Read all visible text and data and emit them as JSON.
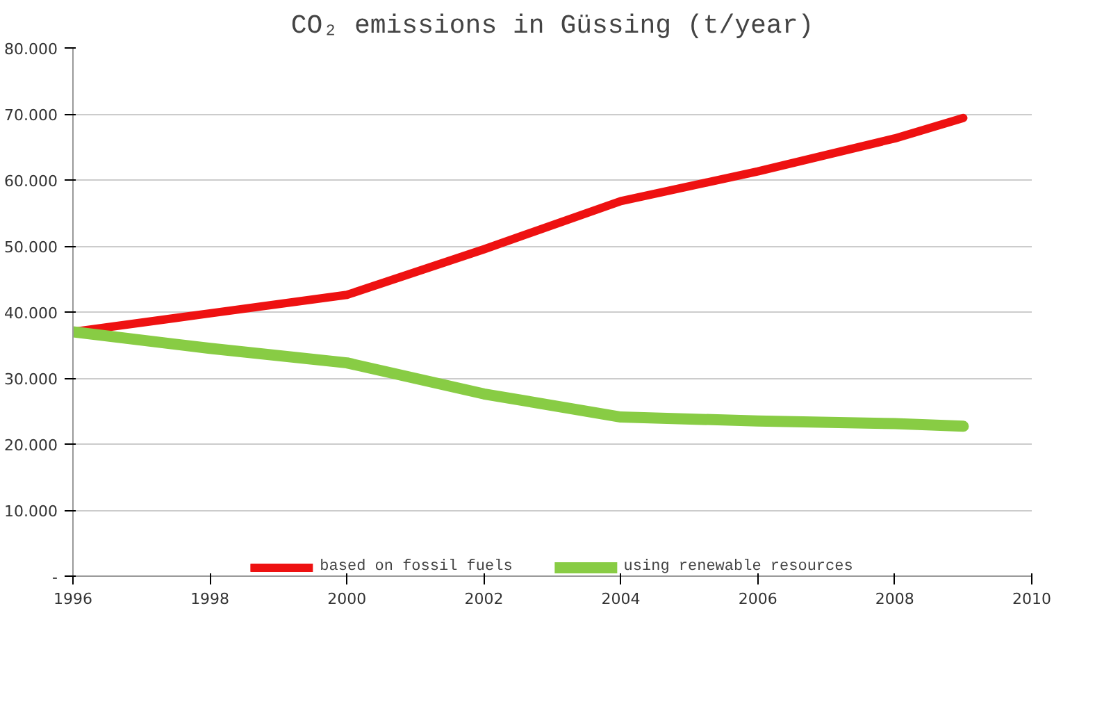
{
  "chart_data": {
    "type": "line",
    "title": "CO₂ emissions in Güssing (t/year)",
    "x": [
      1996,
      1998,
      2000,
      2002,
      2004,
      2006,
      2008,
      2009
    ],
    "series": [
      {
        "name": "based on fossil fuels",
        "color": "#ee1111",
        "values": [
          37000,
          39800,
          42600,
          49500,
          56800,
          61300,
          66300,
          69400
        ]
      },
      {
        "name": "using renewable resources",
        "color": "#88cc44",
        "values": [
          37000,
          34500,
          32300,
          27600,
          24100,
          23500,
          23100,
          22700
        ]
      }
    ],
    "xlim": [
      1996,
      2010
    ],
    "xticks": [
      1996,
      1998,
      2000,
      2002,
      2004,
      2006,
      2008,
      2010
    ],
    "ylim": [
      0,
      80000
    ],
    "yticks": [
      {
        "value": 0,
        "label": "-"
      },
      {
        "value": 10000,
        "label": "10.000"
      },
      {
        "value": 20000,
        "label": "20.000"
      },
      {
        "value": 30000,
        "label": "30.000"
      },
      {
        "value": 40000,
        "label": "40.000"
      },
      {
        "value": 50000,
        "label": "50.000"
      },
      {
        "value": 60000,
        "label": "60.000"
      },
      {
        "value": 70000,
        "label": "70.000"
      },
      {
        "value": 80000,
        "label": "80.000"
      }
    ],
    "grid": "y",
    "legend": "bottom",
    "marker": "none",
    "line_style": "solid"
  }
}
